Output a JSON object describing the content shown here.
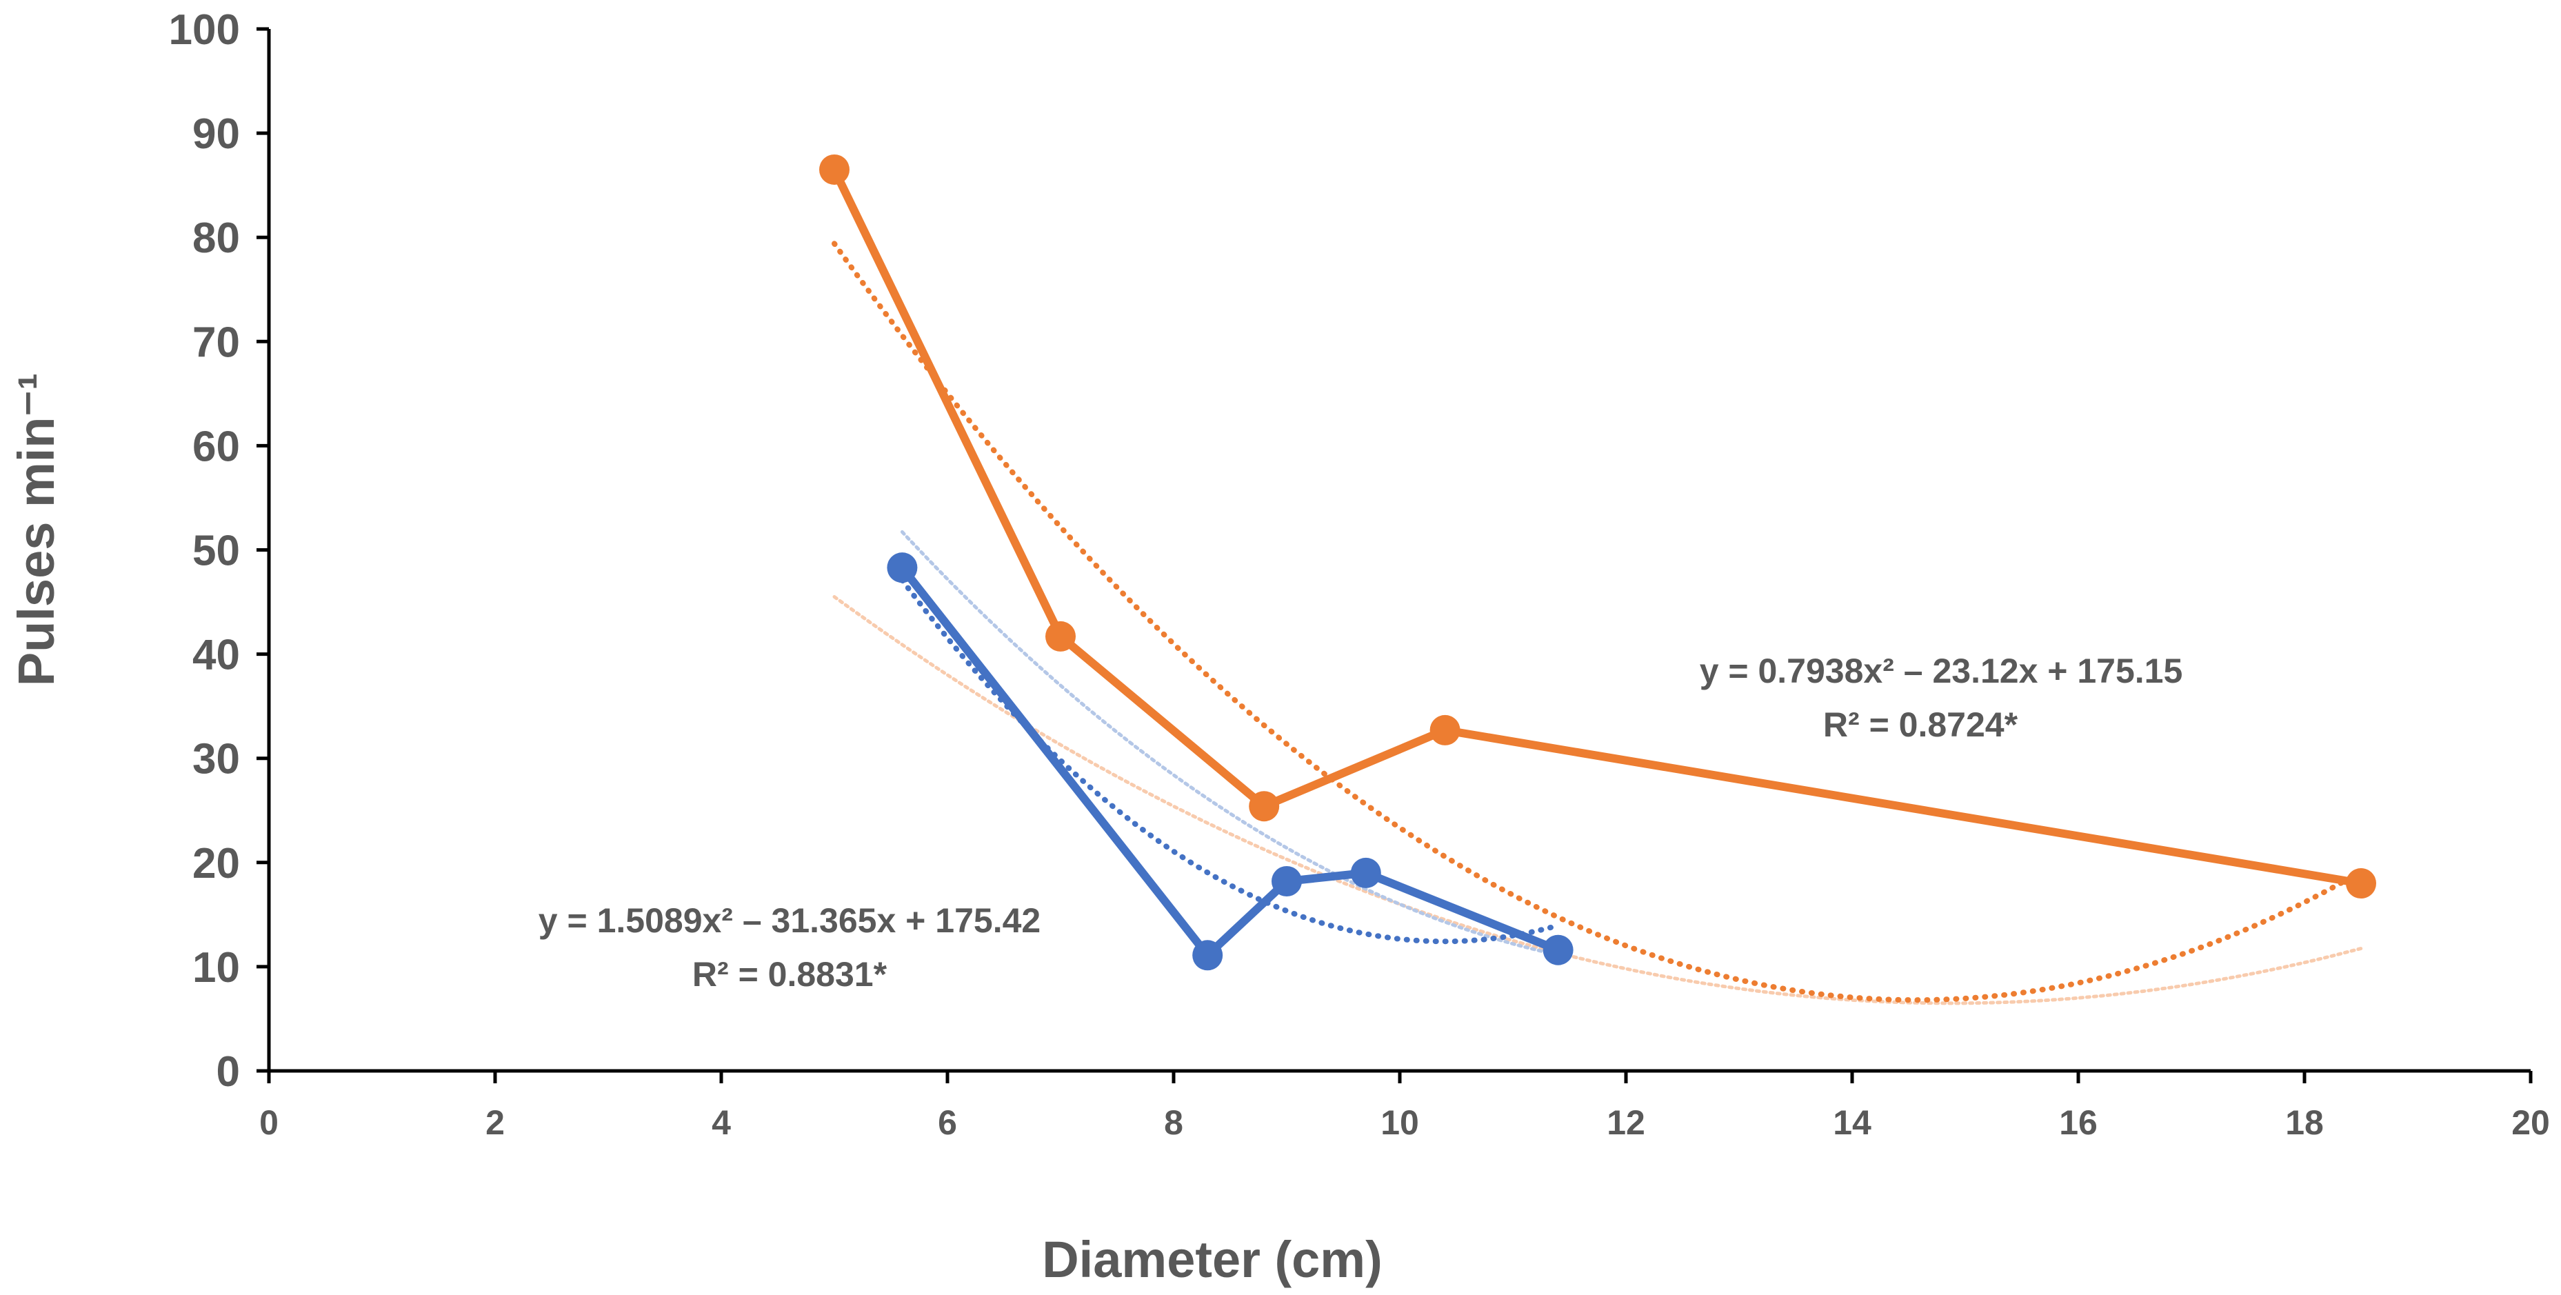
{
  "chart_data": {
    "type": "line",
    "title": "",
    "xlabel": "Diameter (cm)",
    "ylabel": "Pulses min⁻¹",
    "xlim": [
      0,
      20
    ],
    "ylim": [
      0,
      100
    ],
    "xticks": [
      "0",
      "2",
      "4",
      "6",
      "8",
      "10",
      "12",
      "14",
      "16",
      "18",
      "20"
    ],
    "yticks": [
      "0",
      "10",
      "20",
      "30",
      "40",
      "50",
      "60",
      "70",
      "80",
      "90",
      "100"
    ],
    "grid": false,
    "colors": {
      "orange": "#ED7D31",
      "blue": "#4472C4",
      "faint_orange": "#F8CBAD",
      "faint_blue": "#B4C7E7",
      "text": "#595959"
    },
    "series": [
      {
        "name": "orange",
        "x": [
          5.0,
          7.0,
          8.8,
          10.4,
          18.5
        ],
        "y": [
          86.5,
          41.7,
          25.4,
          32.7,
          18.0
        ],
        "trendline": {
          "a": 0.7938,
          "b": -23.12,
          "c": 175.15,
          "x_range": [
            5.0,
            18.5
          ]
        },
        "equation": "y = 0.7938x² – 23.12x + 175.15",
        "r2": "R² = 0.8724*",
        "faint_curve": {
          "a": 0.4,
          "b": -11.9,
          "c": 95.0,
          "x_range": [
            5.0,
            18.5
          ]
        }
      },
      {
        "name": "blue",
        "x": [
          5.6,
          8.3,
          9.0,
          9.7,
          11.4
        ],
        "y": [
          48.3,
          11.1,
          18.2,
          19.0,
          11.6
        ],
        "trendline": {
          "a": 1.5089,
          "b": -31.365,
          "c": 175.42,
          "x_range": [
            5.6,
            11.4
          ]
        },
        "equation": "y = 1.5089x² – 31.365x + 175.42",
        "r2": "R² = 0.8831*",
        "faint_curve": {
          "a": 0.8,
          "b": -20.6,
          "c": 142.0,
          "x_range": [
            5.6,
            11.4
          ]
        }
      }
    ]
  }
}
